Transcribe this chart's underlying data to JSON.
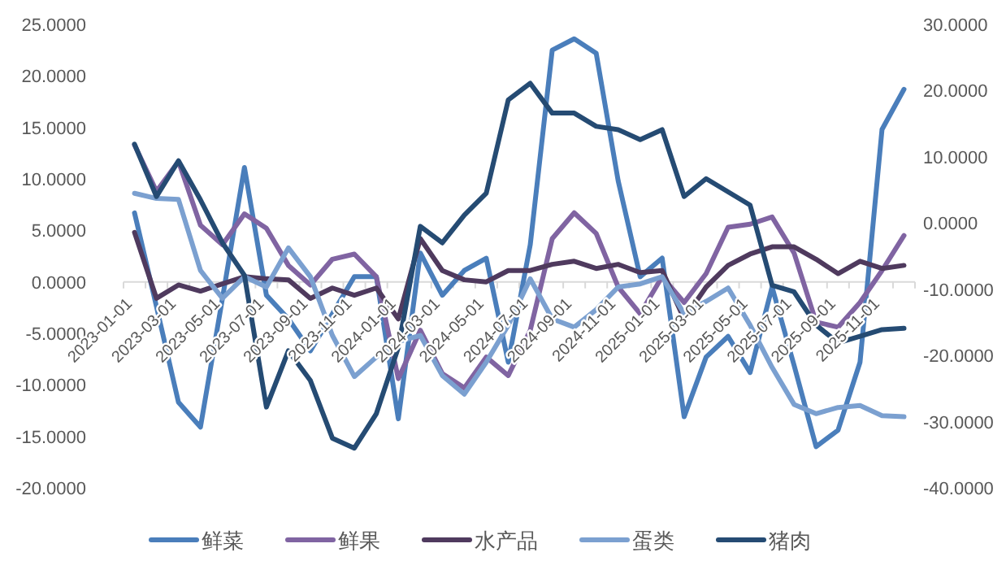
{
  "chart_data": {
    "type": "line",
    "categories": [
      "2023-01-01",
      null,
      "2023-03-01",
      null,
      "2023-05-01",
      null,
      "2023-07-01",
      null,
      "2023-09-01",
      null,
      "2023-11-01",
      null,
      "2024-01-01",
      null,
      "2024-03-01",
      null,
      "2024-05-01",
      null,
      "2024-07-01",
      null,
      "2024-09-01",
      null,
      "2024-11-01",
      null,
      "2025-01-01",
      null,
      "2025-03-01",
      null,
      "2025-05-01",
      null,
      "2025-07-01",
      null,
      "2025-09-01",
      null,
      "2025-11-01",
      null
    ],
    "series": [
      {
        "name": "鲜菜",
        "color": "#4a7ebb",
        "values": [
          6.7,
          -2.4,
          -11.7,
          -14.1,
          -1.6,
          11.1,
          -1.3,
          -3.6,
          -6.7,
          -3.1,
          0.5,
          0.5,
          -13.3,
          2.8,
          -1.3,
          1.1,
          2.3,
          -7.8,
          3.6,
          22.5,
          23.6,
          22.2,
          9.8,
          0.5,
          2.3,
          -13.1,
          -7.3,
          -5.3,
          -8.8,
          -0.5,
          -8.1,
          -16.0,
          -14.4,
          -7.8,
          14.8,
          18.7
        ]
      },
      {
        "name": "鲜果",
        "color": "#8064a2",
        "values": [
          13.3,
          8.8,
          11.7,
          5.5,
          3.6,
          6.6,
          5.2,
          1.6,
          -0.3,
          2.2,
          2.7,
          0.5,
          -9.4,
          -4.7,
          -8.9,
          -10.3,
          -7.3,
          -9.1,
          -4.7,
          4.2,
          6.7,
          4.7,
          -0.5,
          -3.1,
          0.5,
          -2.0,
          0.8,
          5.3,
          5.6,
          6.3,
          2.8,
          -3.9,
          -4.4,
          -2.0,
          1.1,
          4.5
        ]
      },
      {
        "name": "水产品",
        "color": "#4f3a5e",
        "values": [
          4.8,
          -1.6,
          -0.3,
          -0.9,
          -0.2,
          0.5,
          0.3,
          0.2,
          -1.6,
          -0.6,
          -1.3,
          -0.6,
          -3.6,
          4.2,
          1.1,
          0.2,
          0.0,
          1.1,
          1.1,
          1.7,
          2.0,
          1.3,
          1.7,
          0.9,
          1.1,
          -3.6,
          -0.5,
          1.6,
          2.7,
          3.4,
          3.4,
          2.2,
          0.8,
          2.0,
          1.3,
          1.6
        ]
      },
      {
        "name": "蛋类",
        "color": "#7ba0d0",
        "values": [
          8.6,
          8.1,
          8.0,
          1.1,
          -1.6,
          0.5,
          -0.5,
          3.3,
          0.5,
          -5.2,
          -9.2,
          -7.3,
          -5.8,
          -5.2,
          -9.1,
          -10.9,
          -7.8,
          -4.2,
          0.3,
          -3.6,
          -4.4,
          -2.7,
          -0.5,
          -0.2,
          0.5,
          -3.1,
          -1.9,
          -0.6,
          -4.2,
          -8.3,
          -11.9,
          -12.8,
          -12.2,
          -12.0,
          -13.0,
          -13.1
        ]
      },
      {
        "name": "猪肉",
        "color": "#254b73",
        "axis": "y2",
        "values": [
          11.9,
          4.0,
          9.4,
          3.5,
          -3.0,
          -7.9,
          -27.8,
          -19.3,
          -23.8,
          -32.5,
          -34.0,
          -28.8,
          -18.8,
          -0.5,
          -3.0,
          1.2,
          4.5,
          18.6,
          21.1,
          16.6,
          16.6,
          14.6,
          14.1,
          12.6,
          14.1,
          4.0,
          6.7,
          4.7,
          2.7,
          -9.4,
          -10.4,
          -15.4,
          -18.1,
          -17.1,
          -16.1,
          -15.9
        ]
      }
    ],
    "ylim": [
      -20,
      25
    ],
    "yticks": [
      {
        "value": -20,
        "label": "-20.0000"
      },
      {
        "value": -15,
        "label": "-15.0000"
      },
      {
        "value": -10,
        "label": "-10.0000"
      },
      {
        "value": -5,
        "label": "-5.0000"
      },
      {
        "value": 0,
        "label": "0.0000"
      },
      {
        "value": 5,
        "label": "5.0000"
      },
      {
        "value": 10,
        "label": "10.0000"
      },
      {
        "value": 15,
        "label": "15.0000"
      },
      {
        "value": 20,
        "label": "20.0000"
      },
      {
        "value": 25,
        "label": "25.0000"
      }
    ],
    "y2lim": [
      -40,
      30
    ],
    "y2ticks": [
      {
        "value": -40,
        "label": "-40.0000"
      },
      {
        "value": -30,
        "label": "-30.0000"
      },
      {
        "value": -20,
        "label": "-20.0000"
      },
      {
        "value": -10,
        "label": "-10.0000"
      },
      {
        "value": 0,
        "label": "0.0000"
      },
      {
        "value": 10,
        "label": "10.0000"
      },
      {
        "value": 20,
        "label": "20.0000"
      },
      {
        "value": 30,
        "label": "30.0000"
      }
    ],
    "grid": false,
    "legend": "bottom",
    "marker": "none",
    "line_style": "solid"
  }
}
